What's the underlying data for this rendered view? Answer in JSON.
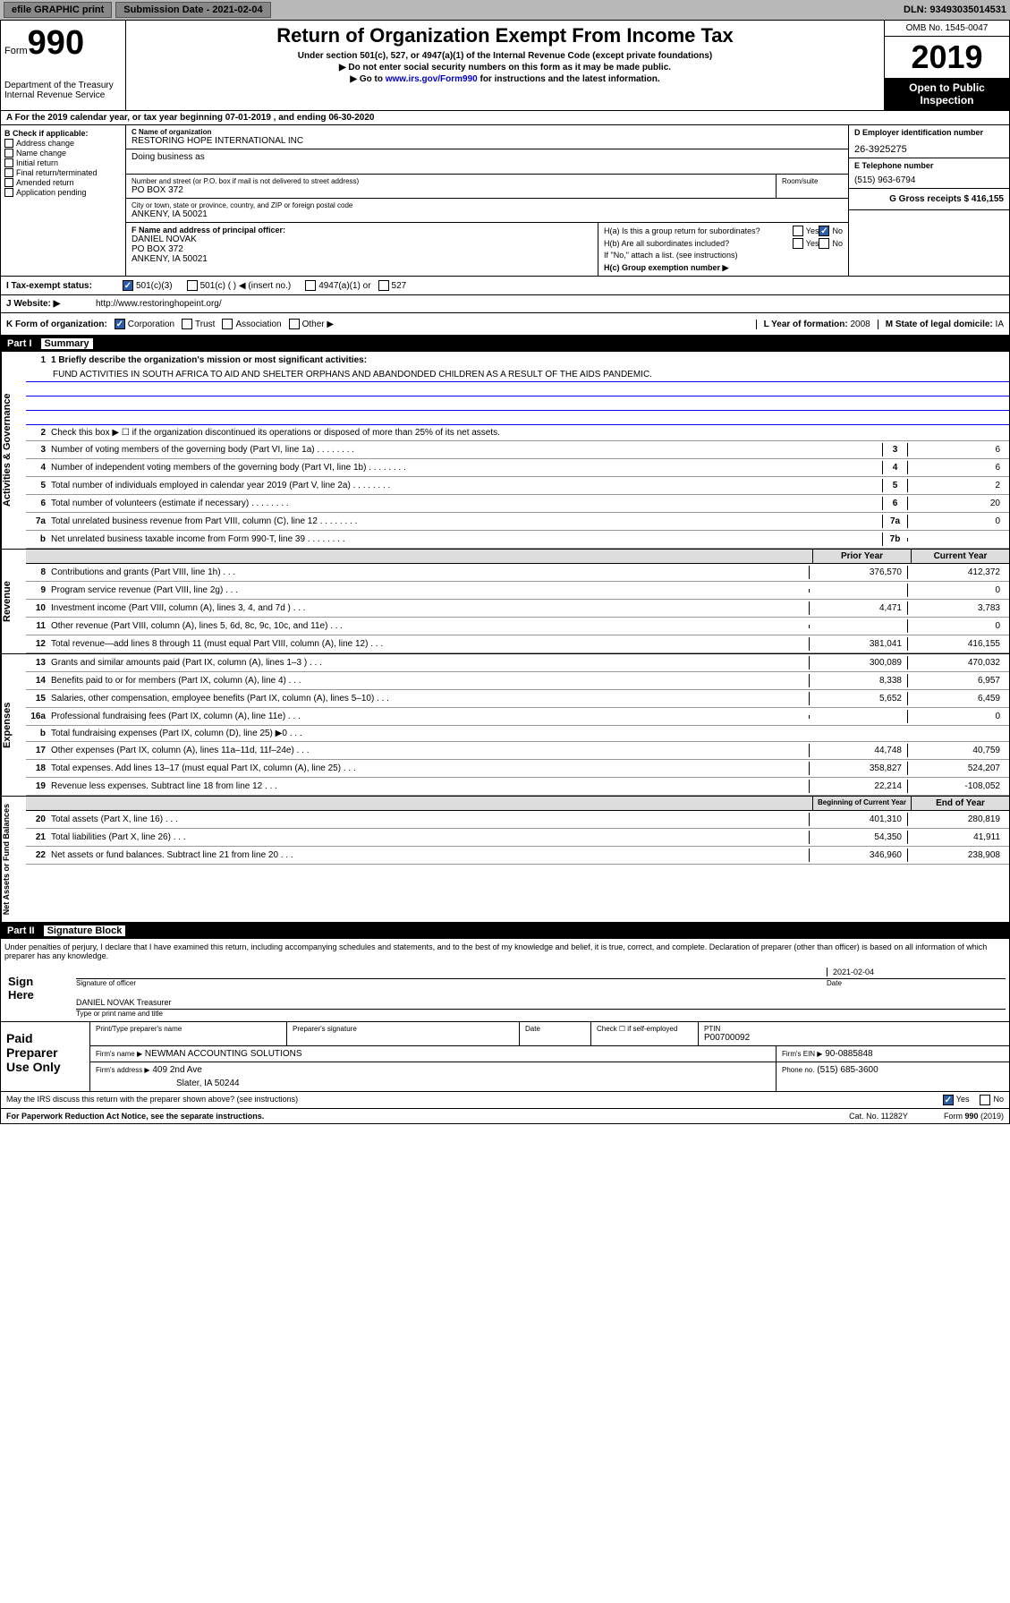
{
  "topbar": {
    "efile": "efile GRAPHIC print",
    "submission": "Submission Date - 2021-02-04",
    "dln": "DLN: 93493035014531"
  },
  "header": {
    "form_label": "Form",
    "form_num": "990",
    "title": "Return of Organization Exempt From Income Tax",
    "subtitle": "Under section 501(c), 527, or 4947(a)(1) of the Internal Revenue Code (except private foundations)",
    "note1": "▶ Do not enter social security numbers on this form as it may be made public.",
    "note2": "▶ Go to www.irs.gov/Form990 for instructions and the latest information.",
    "dept": "Department of the Treasury\nInternal Revenue Service",
    "omb": "OMB No. 1545-0047",
    "year": "2019",
    "open": "Open to Public Inspection"
  },
  "secA": "A For the 2019 calendar year, or tax year beginning 07-01-2019    , and ending 06-30-2020",
  "colB": {
    "label": "B Check if applicable:",
    "items": [
      "Address change",
      "Name change",
      "Initial return",
      "Final return/terminated",
      "Amended return",
      "Application pending"
    ]
  },
  "org": {
    "name_lbl": "C Name of organization",
    "name": "RESTORING HOPE INTERNATIONAL INC",
    "dba_lbl": "Doing business as",
    "street_lbl": "Number and street (or P.O. box if mail is not delivered to street address)",
    "street": "PO BOX 372",
    "room_lbl": "Room/suite",
    "city_lbl": "City or town, state or province, country, and ZIP or foreign postal code",
    "city": "ANKENY, IA  50021",
    "officer_lbl": "F  Name and address of principal officer:",
    "officer_name": "DANIEL NOVAK",
    "officer_addr1": "PO BOX 372",
    "officer_addr2": "ANKENY, IA  50021"
  },
  "right": {
    "ein_lbl": "D Employer identification number",
    "ein": "26-3925275",
    "phone_lbl": "E Telephone number",
    "phone": "(515) 963-6794",
    "gross_lbl": "G Gross receipts $",
    "gross": "416,155",
    "ha": "H(a)  Is this a group return for subordinates?",
    "hb": "H(b)  Are all subordinates included?",
    "hb_note": "If \"No,\" attach a list. (see instructions)",
    "hc": "H(c)  Group exemption number ▶",
    "yes": "Yes",
    "no": "No"
  },
  "rowI": {
    "lbl": "I    Tax-exempt status:",
    "opt1": "501(c)(3)",
    "opt2": "501(c) (   ) ◀ (insert no.)",
    "opt3": "4947(a)(1) or",
    "opt4": "527"
  },
  "rowJ": {
    "lbl": "J   Website: ▶",
    "url": "http://www.restoringhopeint.org/"
  },
  "rowK": {
    "lbl": "K Form of organization:",
    "corp": "Corporation",
    "trust": "Trust",
    "assoc": "Association",
    "other": "Other ▶",
    "year_lbl": "L Year of formation:",
    "year": "2008",
    "state_lbl": "M State of legal domicile:",
    "state": "IA"
  },
  "part1": {
    "num": "Part I",
    "title": "Summary",
    "line1_lbl": "1  Briefly describe the organization's mission or most significant activities:",
    "mission": "FUND ACTIVITIES IN SOUTH AFRICA TO AID AND SHELTER ORPHANS AND ABANDONDED CHILDREN AS A RESULT OF THE AIDS PANDEMIC.",
    "line2": "Check this box ▶ ☐  if the organization discontinued its operations or disposed of more than 25% of its net assets.",
    "sidebar1": "Activities & Governance",
    "sidebar2": "Revenue",
    "sidebar3": "Expenses",
    "sidebar4": "Net Assets or Fund Balances"
  },
  "gov_lines": [
    {
      "n": "3",
      "d": "Number of voting members of the governing body (Part VI, line 1a)",
      "box": "3",
      "v": "6"
    },
    {
      "n": "4",
      "d": "Number of independent voting members of the governing body (Part VI, line 1b)",
      "box": "4",
      "v": "6"
    },
    {
      "n": "5",
      "d": "Total number of individuals employed in calendar year 2019 (Part V, line 2a)",
      "box": "5",
      "v": "2"
    },
    {
      "n": "6",
      "d": "Total number of volunteers (estimate if necessary)",
      "box": "6",
      "v": "20"
    },
    {
      "n": "7a",
      "d": "Total unrelated business revenue from Part VIII, column (C), line 12",
      "box": "7a",
      "v": "0"
    },
    {
      "n": "b",
      "d": "Net unrelated business taxable income from Form 990-T, line 39",
      "box": "7b",
      "v": ""
    }
  ],
  "rev_hdr": {
    "c1": "Prior Year",
    "c2": "Current Year"
  },
  "rev_lines": [
    {
      "n": "8",
      "d": "Contributions and grants (Part VIII, line 1h)",
      "p": "376,570",
      "c": "412,372"
    },
    {
      "n": "9",
      "d": "Program service revenue (Part VIII, line 2g)",
      "p": "",
      "c": "0"
    },
    {
      "n": "10",
      "d": "Investment income (Part VIII, column (A), lines 3, 4, and 7d )",
      "p": "4,471",
      "c": "3,783"
    },
    {
      "n": "11",
      "d": "Other revenue (Part VIII, column (A), lines 5, 6d, 8c, 9c, 10c, and 11e)",
      "p": "",
      "c": "0"
    },
    {
      "n": "12",
      "d": "Total revenue—add lines 8 through 11 (must equal Part VIII, column (A), line 12)",
      "p": "381,041",
      "c": "416,155"
    }
  ],
  "exp_lines": [
    {
      "n": "13",
      "d": "Grants and similar amounts paid (Part IX, column (A), lines 1–3 )",
      "p": "300,089",
      "c": "470,032"
    },
    {
      "n": "14",
      "d": "Benefits paid to or for members (Part IX, column (A), line 4)",
      "p": "8,338",
      "c": "6,957"
    },
    {
      "n": "15",
      "d": "Salaries, other compensation, employee benefits (Part IX, column (A), lines 5–10)",
      "p": "5,652",
      "c": "6,459"
    },
    {
      "n": "16a",
      "d": "Professional fundraising fees (Part IX, column (A), line 11e)",
      "p": "",
      "c": "0"
    },
    {
      "n": "b",
      "d": "Total fundraising expenses (Part IX, column (D), line 25) ▶0",
      "p": null,
      "c": null
    },
    {
      "n": "17",
      "d": "Other expenses (Part IX, column (A), lines 11a–11d, 11f–24e)",
      "p": "44,748",
      "c": "40,759"
    },
    {
      "n": "18",
      "d": "Total expenses. Add lines 13–17 (must equal Part IX, column (A), line 25)",
      "p": "358,827",
      "c": "524,207"
    },
    {
      "n": "19",
      "d": "Revenue less expenses. Subtract line 18 from line 12",
      "p": "22,214",
      "c": "-108,052"
    }
  ],
  "net_hdr": {
    "c1": "Beginning of Current Year",
    "c2": "End of Year"
  },
  "net_lines": [
    {
      "n": "20",
      "d": "Total assets (Part X, line 16)",
      "p": "401,310",
      "c": "280,819"
    },
    {
      "n": "21",
      "d": "Total liabilities (Part X, line 26)",
      "p": "54,350",
      "c": "41,911"
    },
    {
      "n": "22",
      "d": "Net assets or fund balances. Subtract line 21 from line 20",
      "p": "346,960",
      "c": "238,908"
    }
  ],
  "part2": {
    "num": "Part II",
    "title": "Signature Block",
    "decl": "Under penalties of perjury, I declare that I have examined this return, including accompanying schedules and statements, and to the best of my knowledge and belief, it is true, correct, and complete. Declaration of preparer (other than officer) is based on all information of which preparer has any knowledge."
  },
  "sign": {
    "here": "Sign Here",
    "sig_lbl": "Signature of officer",
    "date": "2021-02-04",
    "date_lbl": "Date",
    "name": "DANIEL NOVAK  Treasurer",
    "name_lbl": "Type or print name and title"
  },
  "paid": {
    "title": "Paid Preparer Use Only",
    "prep_name_lbl": "Print/Type preparer's name",
    "prep_sig_lbl": "Preparer's signature",
    "date_lbl": "Date",
    "check_lbl": "Check ☐ if self-employed",
    "ptin_lbl": "PTIN",
    "ptin": "P00700092",
    "firm_name_lbl": "Firm's name      ▶",
    "firm_name": "NEWMAN ACCOUNTING SOLUTIONS",
    "firm_ein_lbl": "Firm's EIN ▶",
    "firm_ein": "90-0885848",
    "firm_addr_lbl": "Firm's address ▶",
    "firm_addr1": "409 2nd Ave",
    "firm_addr2": "Slater, IA  50244",
    "phone_lbl": "Phone no.",
    "phone": "(515) 685-3600"
  },
  "discuss": {
    "q": "May the IRS discuss this return with the preparer shown above? (see instructions)",
    "yes": "Yes",
    "no": "No"
  },
  "footer": {
    "pra": "For Paperwork Reduction Act Notice, see the separate instructions.",
    "cat": "Cat. No. 11282Y",
    "form": "Form 990 (2019)"
  }
}
